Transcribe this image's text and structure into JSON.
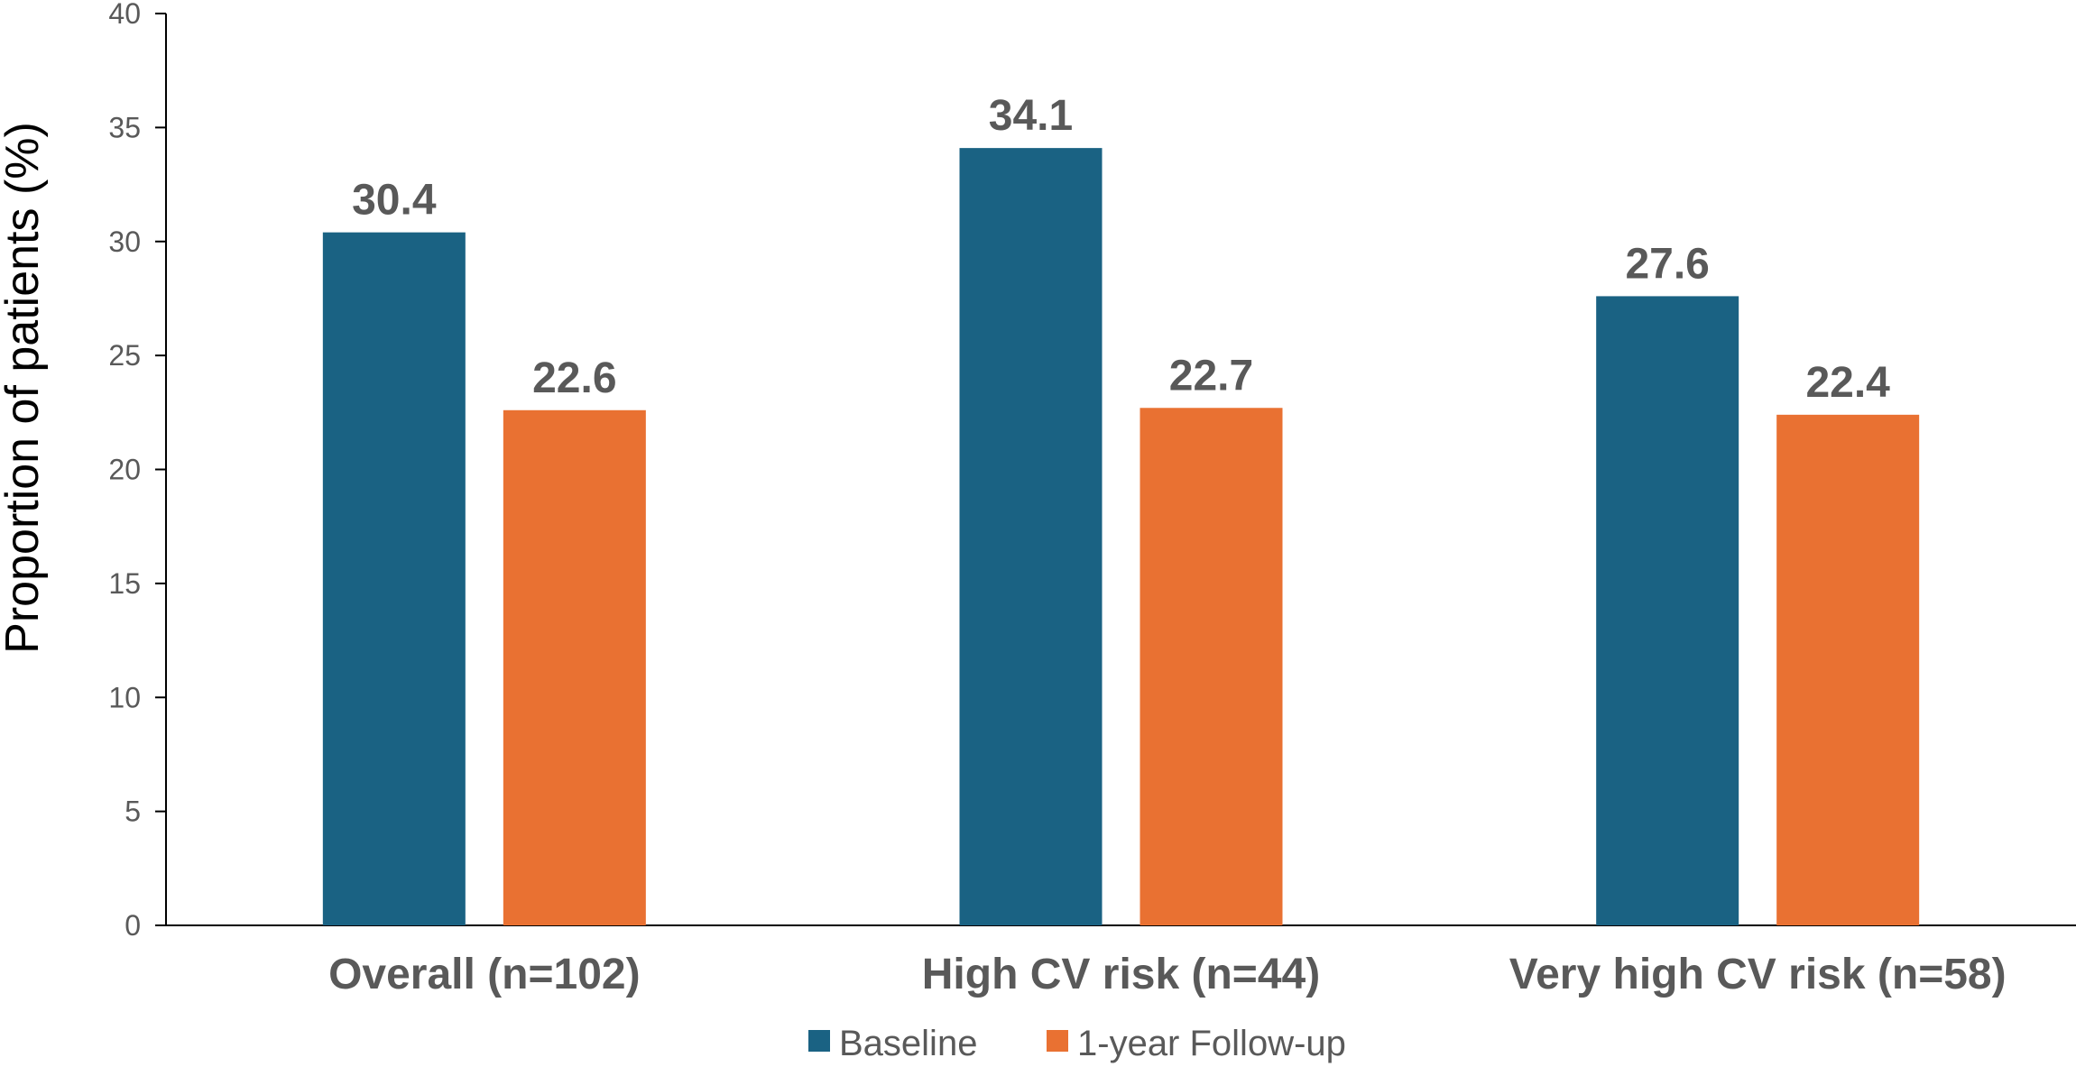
{
  "chart_data": {
    "type": "bar",
    "categories": [
      "Overall (n=102)",
      "High CV risk (n=44)",
      "Very high CV risk (n=58)"
    ],
    "series": [
      {
        "name": "Baseline",
        "values": [
          30.4,
          34.1,
          27.6
        ],
        "color": "#1a6283"
      },
      {
        "name": "1-year Follow-up",
        "values": [
          22.6,
          22.7,
          22.4
        ],
        "color": "#e97132"
      }
    ],
    "title": "",
    "xlabel": "",
    "ylabel": "Proportion of patients (%)",
    "ylim": [
      0,
      40
    ],
    "yticks": [
      0,
      5,
      10,
      15,
      20,
      25,
      30,
      35,
      40
    ],
    "grid": false,
    "legend_position": "bottom"
  }
}
